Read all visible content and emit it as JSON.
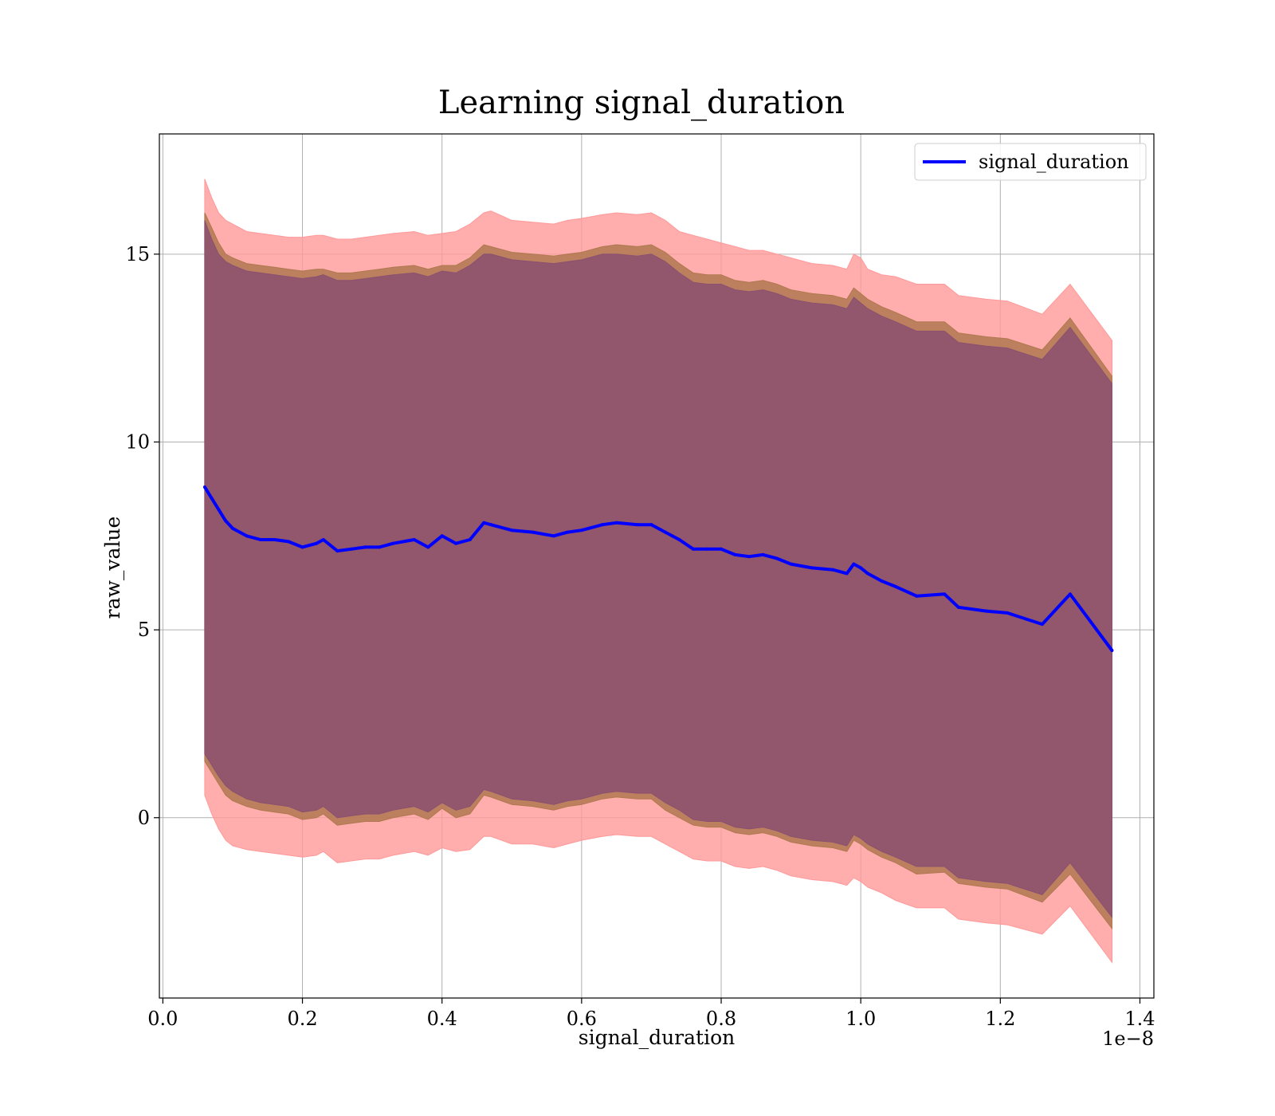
{
  "chart_data": {
    "type": "line",
    "title": "Learning signal_duration",
    "xlabel": "signal_duration",
    "ylabel": "raw_value",
    "x_offset_text": "1e−8",
    "xlim": [
      -0.005,
      1.42
    ],
    "ylim": [
      -4.8,
      18.2
    ],
    "xticks": [
      0.0,
      0.2,
      0.4,
      0.6,
      0.8,
      1.0,
      1.2,
      1.4
    ],
    "xtick_labels": [
      "0.0",
      "0.2",
      "0.4",
      "0.6",
      "0.8",
      "1.0",
      "1.2",
      "1.4"
    ],
    "yticks": [
      0,
      5,
      10,
      15
    ],
    "ytick_labels": [
      "0",
      "5",
      "10",
      "15"
    ],
    "grid": true,
    "legend": {
      "position": "top-right",
      "entries": [
        "signal_duration"
      ]
    },
    "colors": {
      "line": "#0000ff",
      "band_outer": "#ff9999",
      "band_middle": "#b07850",
      "band_inner": "#8b5070"
    },
    "series": [
      {
        "name": "signal_duration",
        "x": [
          0.06,
          0.07,
          0.08,
          0.09,
          0.1,
          0.12,
          0.14,
          0.16,
          0.18,
          0.2,
          0.22,
          0.23,
          0.25,
          0.27,
          0.29,
          0.31,
          0.33,
          0.36,
          0.38,
          0.4,
          0.42,
          0.44,
          0.46,
          0.47,
          0.5,
          0.53,
          0.56,
          0.58,
          0.6,
          0.63,
          0.65,
          0.68,
          0.7,
          0.72,
          0.74,
          0.76,
          0.78,
          0.8,
          0.82,
          0.84,
          0.86,
          0.88,
          0.9,
          0.93,
          0.96,
          0.98,
          0.99,
          1.0,
          1.01,
          1.03,
          1.05,
          1.08,
          1.12,
          1.14,
          1.18,
          1.21,
          1.26,
          1.3,
          1.36
        ],
        "y": [
          8.8,
          8.5,
          8.2,
          7.9,
          7.7,
          7.5,
          7.4,
          7.4,
          7.35,
          7.2,
          7.3,
          7.4,
          7.1,
          7.15,
          7.2,
          7.2,
          7.3,
          7.4,
          7.2,
          7.5,
          7.3,
          7.4,
          7.85,
          7.8,
          7.65,
          7.6,
          7.5,
          7.6,
          7.65,
          7.8,
          7.85,
          7.8,
          7.8,
          7.6,
          7.4,
          7.15,
          7.15,
          7.15,
          7.0,
          6.95,
          7.0,
          6.9,
          6.75,
          6.65,
          6.6,
          6.5,
          6.75,
          6.65,
          6.5,
          6.3,
          6.15,
          5.9,
          5.95,
          5.6,
          5.5,
          5.45,
          5.15,
          5.95,
          4.45
        ],
        "band_outer_upper": [
          17.0,
          16.5,
          16.1,
          15.9,
          15.8,
          15.6,
          15.55,
          15.5,
          15.45,
          15.45,
          15.5,
          15.5,
          15.4,
          15.4,
          15.45,
          15.5,
          15.55,
          15.6,
          15.5,
          15.55,
          15.6,
          15.8,
          16.1,
          16.15,
          15.9,
          15.85,
          15.8,
          15.9,
          15.95,
          16.05,
          16.1,
          16.05,
          16.1,
          15.9,
          15.6,
          15.5,
          15.4,
          15.3,
          15.2,
          15.1,
          15.1,
          15.0,
          14.9,
          14.75,
          14.7,
          14.6,
          15.0,
          14.9,
          14.6,
          14.45,
          14.4,
          14.2,
          14.2,
          13.9,
          13.8,
          13.75,
          13.4,
          14.2,
          12.7
        ],
        "band_outer_lower": [
          0.6,
          0.1,
          -0.3,
          -0.6,
          -0.75,
          -0.85,
          -0.9,
          -0.95,
          -1.0,
          -1.05,
          -1.0,
          -0.9,
          -1.2,
          -1.15,
          -1.1,
          -1.1,
          -1.0,
          -0.9,
          -1.0,
          -0.8,
          -0.9,
          -0.85,
          -0.5,
          -0.5,
          -0.7,
          -0.7,
          -0.8,
          -0.7,
          -0.6,
          -0.5,
          -0.45,
          -0.5,
          -0.5,
          -0.7,
          -0.9,
          -1.1,
          -1.15,
          -1.15,
          -1.3,
          -1.35,
          -1.3,
          -1.4,
          -1.55,
          -1.65,
          -1.7,
          -1.8,
          -1.6,
          -1.7,
          -1.85,
          -2.0,
          -2.2,
          -2.4,
          -2.4,
          -2.7,
          -2.8,
          -2.85,
          -3.1,
          -2.35,
          -3.85
        ],
        "band_middle_upper": [
          16.1,
          15.7,
          15.3,
          15.0,
          14.9,
          14.75,
          14.7,
          14.65,
          14.6,
          14.55,
          14.6,
          14.6,
          14.5,
          14.5,
          14.55,
          14.6,
          14.65,
          14.7,
          14.6,
          14.7,
          14.7,
          14.9,
          15.25,
          15.2,
          15.05,
          15.0,
          14.95,
          15.0,
          15.05,
          15.2,
          15.25,
          15.2,
          15.25,
          15.05,
          14.75,
          14.5,
          14.45,
          14.45,
          14.3,
          14.25,
          14.3,
          14.2,
          14.05,
          13.95,
          13.9,
          13.8,
          14.1,
          13.95,
          13.8,
          13.6,
          13.45,
          13.2,
          13.2,
          12.9,
          12.8,
          12.75,
          12.45,
          13.3,
          11.75
        ],
        "band_middle_lower": [
          1.5,
          1.2,
          0.9,
          0.6,
          0.45,
          0.3,
          0.2,
          0.15,
          0.1,
          -0.05,
          0.0,
          0.1,
          -0.2,
          -0.15,
          -0.1,
          -0.1,
          0.0,
          0.1,
          -0.05,
          0.25,
          0.0,
          0.1,
          0.6,
          0.55,
          0.35,
          0.3,
          0.2,
          0.3,
          0.35,
          0.5,
          0.55,
          0.5,
          0.5,
          0.2,
          0.0,
          -0.2,
          -0.25,
          -0.25,
          -0.4,
          -0.45,
          -0.4,
          -0.5,
          -0.65,
          -0.75,
          -0.8,
          -0.9,
          -0.6,
          -0.7,
          -0.85,
          -1.05,
          -1.2,
          -1.5,
          -1.45,
          -1.75,
          -1.85,
          -1.9,
          -2.25,
          -1.5,
          -2.95
        ],
        "band_inner_upper": [
          15.9,
          15.4,
          15.0,
          14.8,
          14.7,
          14.55,
          14.5,
          14.45,
          14.4,
          14.35,
          14.4,
          14.45,
          14.3,
          14.3,
          14.35,
          14.4,
          14.45,
          14.5,
          14.4,
          14.55,
          14.5,
          14.7,
          15.0,
          15.0,
          14.85,
          14.8,
          14.75,
          14.8,
          14.85,
          15.0,
          15.0,
          14.95,
          15.0,
          14.8,
          14.5,
          14.25,
          14.2,
          14.2,
          14.05,
          14.0,
          14.05,
          13.95,
          13.8,
          13.7,
          13.65,
          13.55,
          13.85,
          13.7,
          13.55,
          13.35,
          13.2,
          12.95,
          12.95,
          12.65,
          12.55,
          12.5,
          12.2,
          13.05,
          11.55
        ],
        "band_inner_lower": [
          1.7,
          1.4,
          1.1,
          0.85,
          0.7,
          0.5,
          0.4,
          0.35,
          0.3,
          0.15,
          0.2,
          0.3,
          0.0,
          0.05,
          0.1,
          0.1,
          0.2,
          0.3,
          0.15,
          0.4,
          0.2,
          0.3,
          0.75,
          0.7,
          0.5,
          0.45,
          0.35,
          0.45,
          0.5,
          0.65,
          0.7,
          0.65,
          0.65,
          0.4,
          0.2,
          -0.05,
          -0.1,
          -0.1,
          -0.25,
          -0.3,
          -0.25,
          -0.35,
          -0.5,
          -0.6,
          -0.65,
          -0.75,
          -0.45,
          -0.55,
          -0.7,
          -0.9,
          -1.05,
          -1.3,
          -1.3,
          -1.6,
          -1.7,
          -1.75,
          -2.05,
          -1.2,
          -2.65
        ]
      }
    ]
  }
}
